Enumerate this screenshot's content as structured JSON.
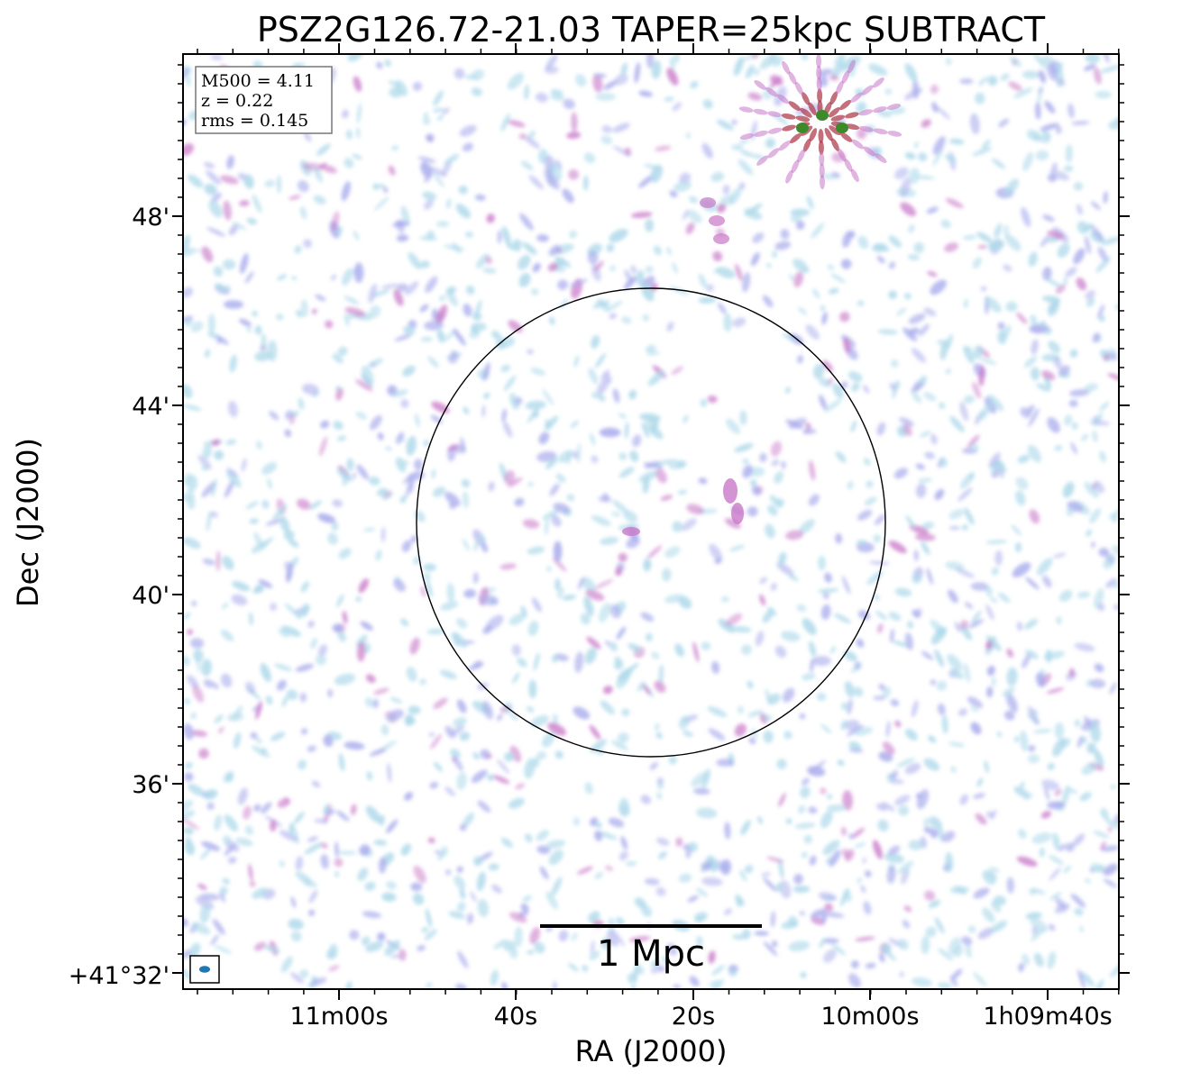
{
  "title": "PSZ2G126.72-21.03 TAPER=25kpc SUBTRACT",
  "info": {
    "m500": "M500 = 4.11",
    "z": "z = 0.22",
    "rms": "rms = 0.145"
  },
  "scale_bar": {
    "label": "1 Mpc"
  },
  "axes": {
    "xlabel": "RA (J2000)",
    "ylabel": "Dec (J2000)",
    "x_ticks": [
      "11m00s",
      "40s",
      "20s",
      "10m00s",
      "1h09m40s"
    ],
    "y_ticks": [
      "48'",
      "44'",
      "40'",
      "36'",
      "+41°32'"
    ]
  },
  "colors": {
    "noise_light": "#aed9ea",
    "noise_mid": "#a9acec",
    "noise_strong": "#c978c8",
    "source_core": "#3d8a2b",
    "source_red": "#b04050",
    "frame": "#000000"
  },
  "beam": {
    "color": "#1f77b4"
  }
}
